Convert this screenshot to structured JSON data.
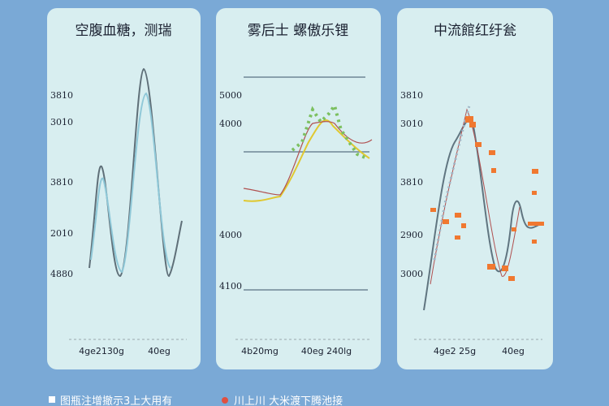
{
  "panels": [
    {
      "title": "空腹血糖，测瑞",
      "y_labels": [
        "3810",
        "3010",
        "3810",
        "2010",
        "4880"
      ],
      "x_labels": [
        "4ge2130g",
        "40eg"
      ]
    },
    {
      "title": "雾后士 螺傲乐锂",
      "y_labels": [
        "5000",
        "4000",
        "4000",
        "4100"
      ],
      "x_labels": [
        "4b20mg",
        "40eg 240lg"
      ]
    },
    {
      "title": "中流館红纡瓮",
      "y_labels": [
        "3810",
        "3010",
        "3810",
        "2900",
        "3000"
      ],
      "x_labels": [
        "4ge2 25g",
        "40eg"
      ]
    }
  ],
  "footer": [
    "图瓶注增撤示3上大用有",
    "川上川 大米渡下腾池接"
  ]
}
